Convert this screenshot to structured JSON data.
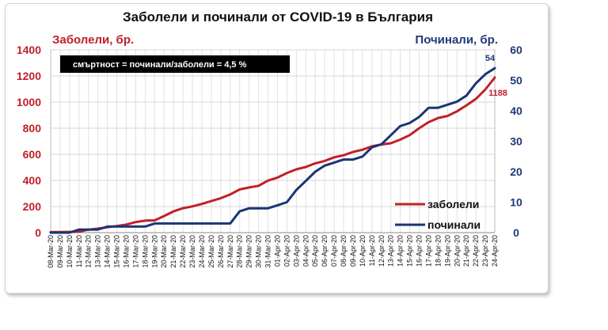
{
  "chart_data": {
    "type": "line",
    "title": "Заболели и починали от COVID-19 в България",
    "ylabel_left": "Заболели, бр.",
    "ylabel_right": "Починали, бр.",
    "ylim_left": [
      0,
      1400
    ],
    "ylim_right": [
      0,
      60
    ],
    "yticks_left": [
      0,
      200,
      400,
      600,
      800,
      1000,
      1200,
      1400
    ],
    "yticks_right": [
      0,
      10,
      20,
      30,
      40,
      50,
      60
    ],
    "grid": true,
    "legend_position": "bottom-right",
    "note": "смъртност = починали/заболели = 4,5 %",
    "categories": [
      "08-Mar-20",
      "09-Mar-20",
      "10-Mar-20",
      "11-Mar-20",
      "12-Mar-20",
      "13-Mar-20",
      "14-Mar-20",
      "15-Mar-20",
      "16-Mar-20",
      "17-Mar-20",
      "18-Mar-20",
      "19-Mar-20",
      "20-Mar-20",
      "21-Mar-20",
      "22-Mar-20",
      "23-Mar-20",
      "24-Mar-20",
      "25-Mar-20",
      "26-Mar-20",
      "27-Mar-20",
      "28-Mar-20",
      "29-Mar-20",
      "30-Mar-20",
      "31-Mar-20",
      "01-Apr-20",
      "02-Apr-20",
      "03-Apr-20",
      "04-Apr-20",
      "05-Apr-20",
      "06-Apr-20",
      "07-Apr-20",
      "08-Apr-20",
      "09-Apr-20",
      "10-Apr-20",
      "11-Apr-20",
      "12-Apr-20",
      "13-Apr-20",
      "14-Apr-20",
      "15-Apr-20",
      "16-Apr-20",
      "17-Apr-20",
      "18-Apr-20",
      "19-Apr-20",
      "20-Apr-20",
      "21-Apr-20",
      "22-Apr-20",
      "23-Apr-20",
      "24-Apr-20"
    ],
    "series": [
      {
        "name": "заболели",
        "axis": "left",
        "color": "#c0202a",
        "values": [
          4,
          4,
          6,
          7,
          23,
          31,
          41,
          51,
          62,
          81,
          92,
          94,
          127,
          163,
          187,
          201,
          220,
          242,
          264,
          293,
          331,
          346,
          359,
          399,
          422,
          457,
          485,
          503,
          531,
          549,
          577,
          593,
          618,
          635,
          661,
          675,
          685,
          713,
          747,
          800,
          846,
          878,
          894,
          929,
          975,
          1024,
          1097,
          1188
        ],
        "end_label": "1188"
      },
      {
        "name": "починали",
        "axis": "right",
        "color": "#1a3575",
        "values": [
          0,
          0,
          0,
          1,
          1,
          1,
          2,
          2,
          2,
          2,
          2,
          3,
          3,
          3,
          3,
          3,
          3,
          3,
          3,
          3,
          7,
          8,
          8,
          8,
          9,
          10,
          14,
          17,
          20,
          22,
          23,
          24,
          24,
          25,
          28,
          29,
          32,
          35,
          36,
          38,
          41,
          41,
          42,
          43,
          45,
          49,
          52,
          54
        ],
        "end_label": "54"
      }
    ]
  }
}
